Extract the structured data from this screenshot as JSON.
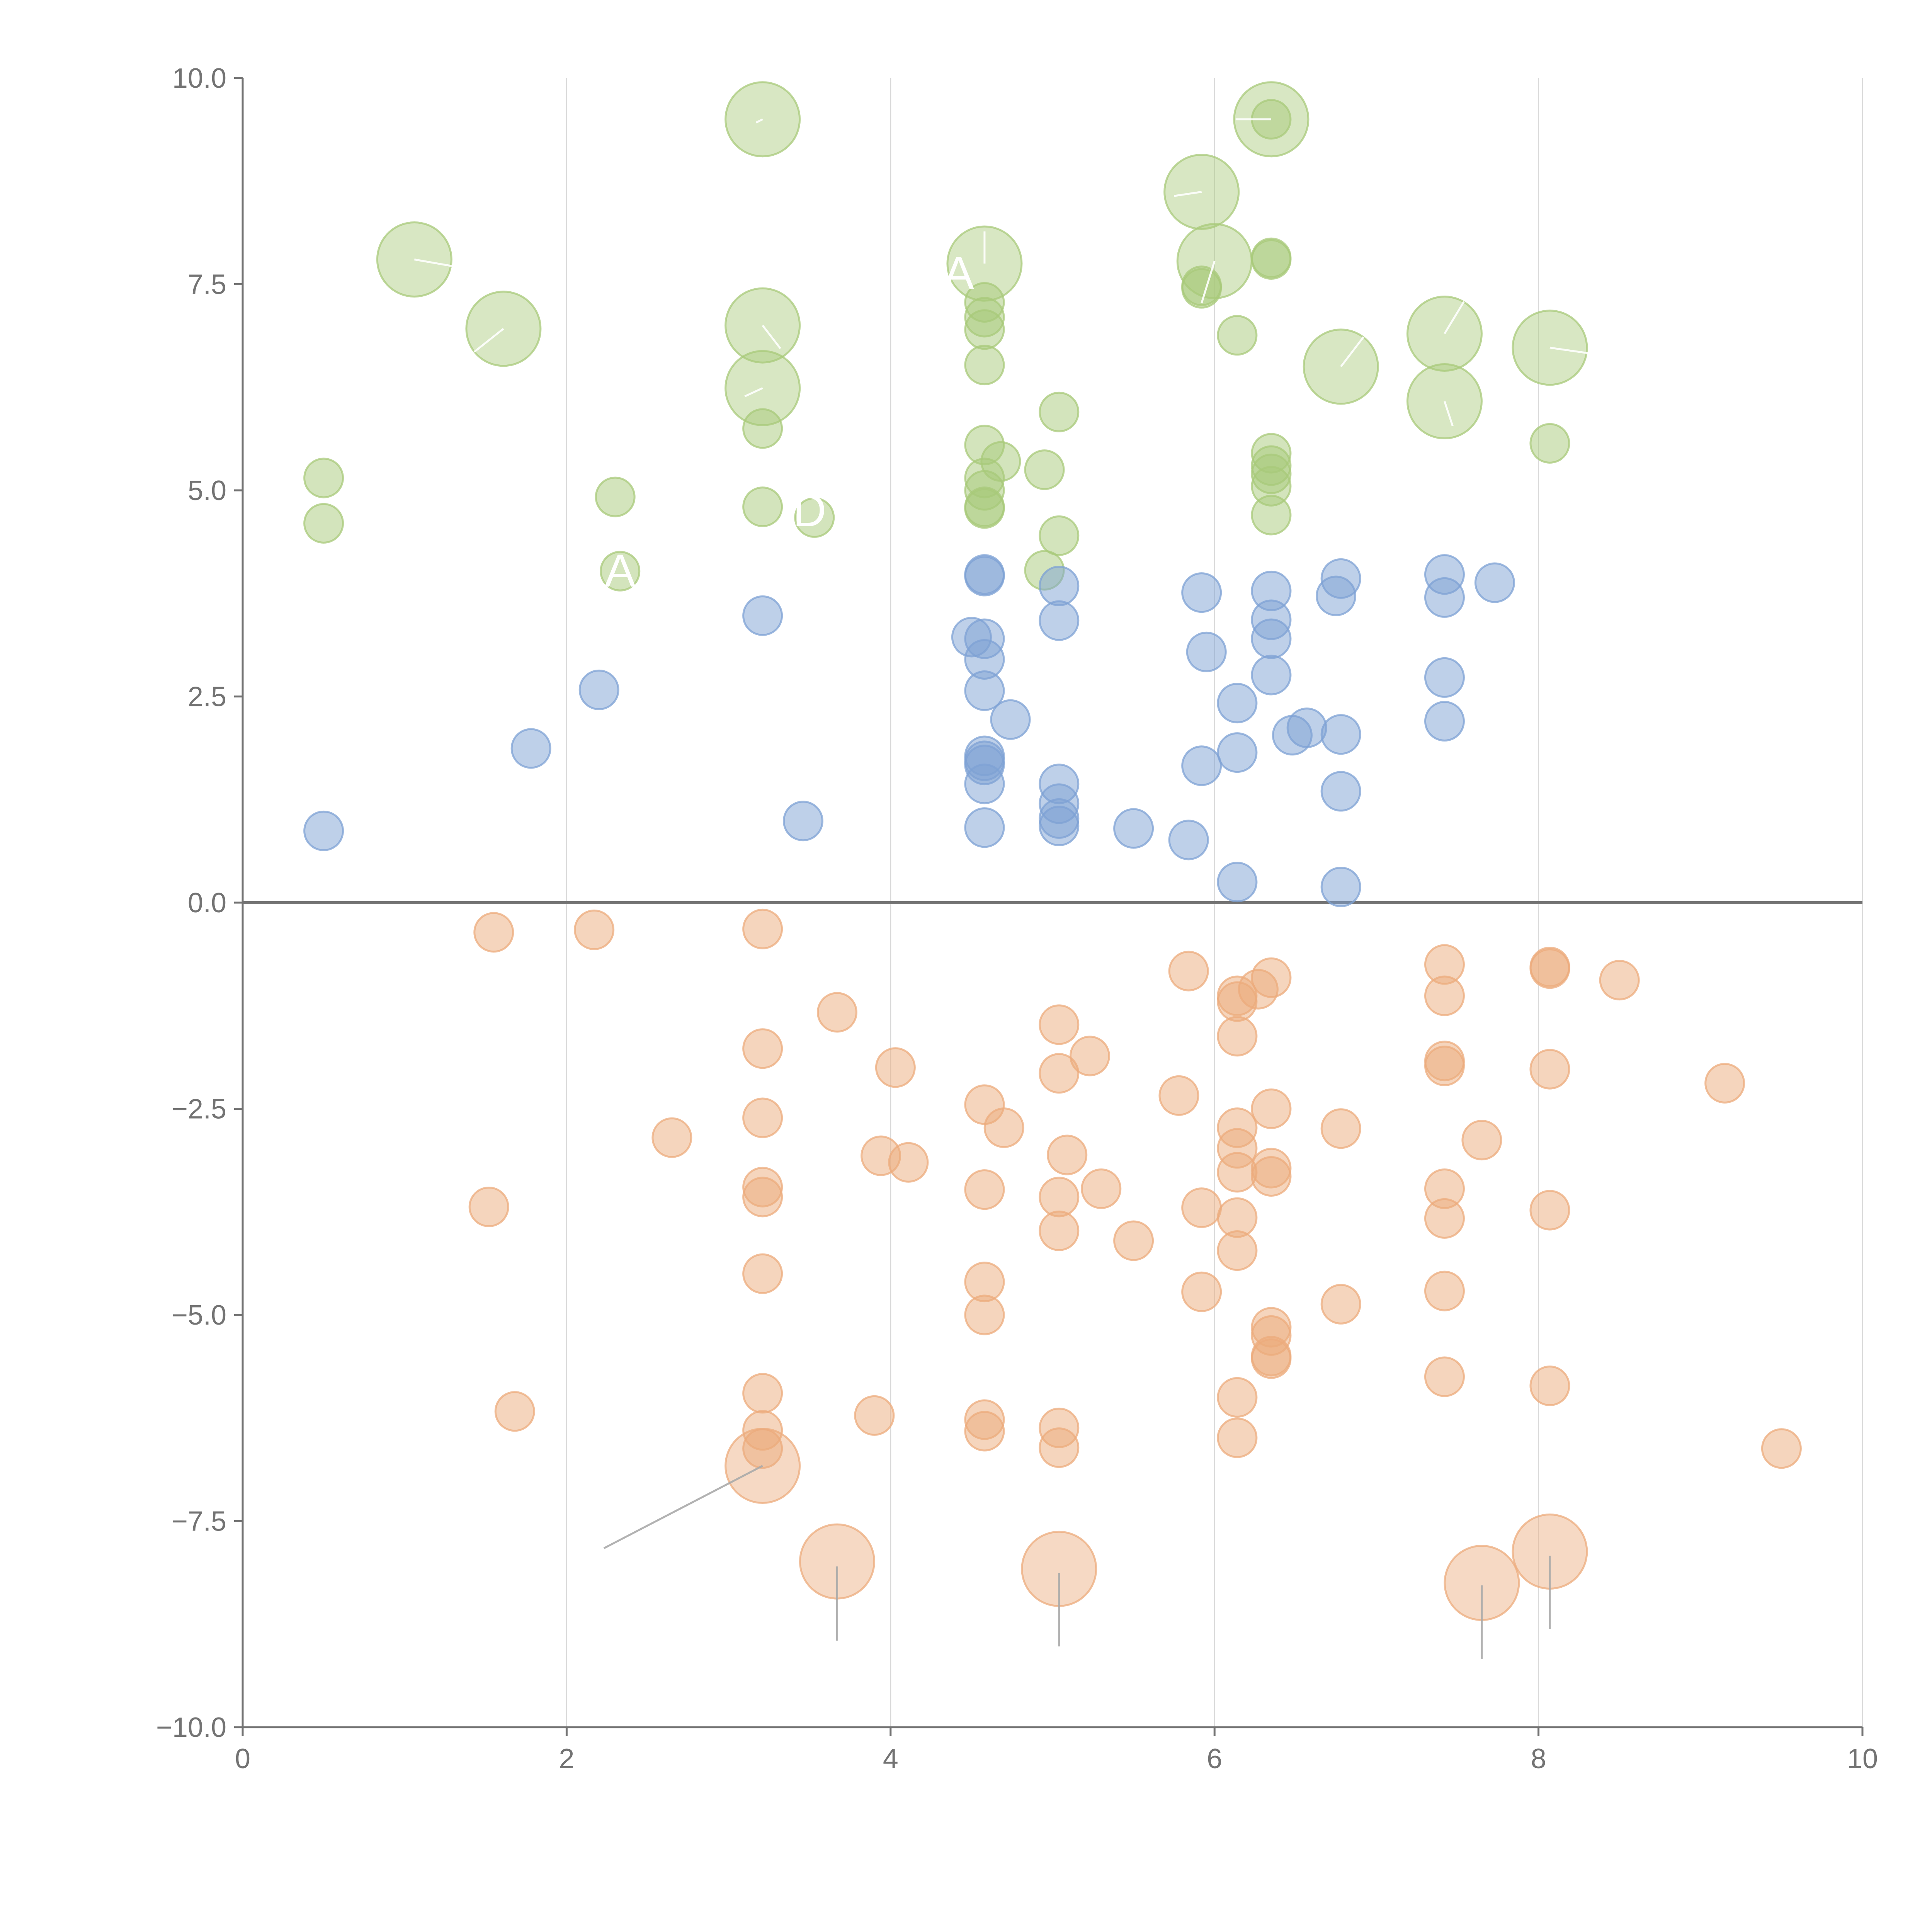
{
  "chart_data": {
    "type": "scatter",
    "title": "",
    "xlabel": "",
    "ylabel": "",
    "xlim": [
      0,
      10
    ],
    "ylim": [
      -10,
      10
    ],
    "x_ticks": [
      "0",
      "2",
      "4",
      "6",
      "8",
      "10"
    ],
    "y_ticks": [
      "10.0",
      "7.5",
      "5.0",
      "2.5",
      "0.0",
      "−2.5",
      "−5.0",
      "−7.5",
      "−10.0"
    ],
    "x_tick_values": [
      0,
      2,
      4,
      6,
      8,
      10
    ],
    "y_tick_values": [
      10,
      7.5,
      5,
      2.5,
      0,
      -2.5,
      -5,
      -7.5,
      -10
    ],
    "grid": "vertical lines at x ticks",
    "baseline_y": 0,
    "colors": {
      "green": "#a8c97a",
      "blue": "#7ea2d4",
      "orange": "#ecab7c",
      "axis": "#737373",
      "grid": "#d9d9d9",
      "leader": "#aaaaaa"
    },
    "series": [
      {
        "color": "green",
        "points": [
          [
            0.5,
            5.15
          ],
          [
            0.5,
            4.6
          ],
          [
            2.3,
            4.92
          ],
          [
            2.33,
            4.02
          ],
          [
            3.21,
            5.75
          ],
          [
            3.21,
            4.8
          ],
          [
            3.53,
            4.67
          ],
          [
            4.58,
            7.28
          ],
          [
            4.58,
            7.1
          ],
          [
            4.58,
            6.95
          ],
          [
            4.58,
            6.52
          ],
          [
            4.58,
            5.55
          ],
          [
            4.58,
            5.15
          ],
          [
            4.58,
            5.0
          ],
          [
            4.58,
            4.8
          ],
          [
            4.58,
            4.78
          ],
          [
            4.68,
            5.35
          ],
          [
            4.95,
            5.25
          ],
          [
            5.04,
            5.95
          ],
          [
            5.04,
            4.45
          ],
          [
            4.95,
            4.03
          ],
          [
            5.92,
            7.48
          ],
          [
            5.92,
            7.45
          ],
          [
            6.14,
            6.88
          ],
          [
            6.35,
            7.82
          ],
          [
            6.35,
            7.8
          ],
          [
            6.35,
            9.5
          ],
          [
            6.35,
            5.45
          ],
          [
            6.35,
            5.3
          ],
          [
            6.35,
            5.2
          ],
          [
            6.35,
            5.05
          ],
          [
            6.35,
            4.7
          ],
          [
            8.07,
            5.57
          ]
        ],
        "bubbles": [
          [
            1.06,
            7.8
          ],
          [
            1.61,
            6.96
          ],
          [
            3.21,
            9.5
          ],
          [
            3.21,
            7.0
          ],
          [
            3.21,
            6.24
          ],
          [
            4.58,
            7.75
          ],
          [
            5.92,
            8.62
          ],
          [
            6.0,
            7.78
          ],
          [
            6.35,
            9.5
          ],
          [
            6.78,
            6.5
          ],
          [
            7.42,
            6.9
          ],
          [
            7.42,
            6.08
          ],
          [
            8.07,
            6.73
          ]
        ]
      },
      {
        "color": "blue",
        "points": [
          [
            0.5,
            0.87
          ],
          [
            1.78,
            1.87
          ],
          [
            2.2,
            2.58
          ],
          [
            3.21,
            3.48
          ],
          [
            3.46,
            0.99
          ],
          [
            4.5,
            3.22
          ],
          [
            4.58,
            3.98
          ],
          [
            4.58,
            3.96
          ],
          [
            4.58,
            3.2
          ],
          [
            4.58,
            2.95
          ],
          [
            4.58,
            2.57
          ],
          [
            4.58,
            1.78
          ],
          [
            4.58,
            1.72
          ],
          [
            4.58,
            1.67
          ],
          [
            4.58,
            1.44
          ],
          [
            4.58,
            0.91
          ],
          [
            4.74,
            2.22
          ],
          [
            5.04,
            3.84
          ],
          [
            5.04,
            3.42
          ],
          [
            5.04,
            1.44
          ],
          [
            5.04,
            1.2
          ],
          [
            5.04,
            1.02
          ],
          [
            5.04,
            0.93
          ],
          [
            5.5,
            0.9
          ],
          [
            5.84,
            0.76
          ],
          [
            5.92,
            3.76
          ],
          [
            5.92,
            1.66
          ],
          [
            5.95,
            3.04
          ],
          [
            6.14,
            2.42
          ],
          [
            6.14,
            1.82
          ],
          [
            6.14,
            0.25
          ],
          [
            6.35,
            3.78
          ],
          [
            6.35,
            3.43
          ],
          [
            6.35,
            3.2
          ],
          [
            6.35,
            2.76
          ],
          [
            6.48,
            2.03
          ],
          [
            6.57,
            2.12
          ],
          [
            6.75,
            3.72
          ],
          [
            6.78,
            3.93
          ],
          [
            6.78,
            2.04
          ],
          [
            6.78,
            1.35
          ],
          [
            6.78,
            0.19
          ],
          [
            7.42,
            3.98
          ],
          [
            7.42,
            3.7
          ],
          [
            7.42,
            2.73
          ],
          [
            7.42,
            2.2
          ],
          [
            7.73,
            3.88
          ]
        ],
        "bubbles": []
      },
      {
        "color": "orange",
        "points": [
          [
            1.55,
            -0.36
          ],
          [
            2.17,
            -0.33
          ],
          [
            3.21,
            -0.32
          ],
          [
            3.67,
            -1.33
          ],
          [
            4.03,
            -2.0
          ],
          [
            3.21,
            -1.77
          ],
          [
            3.21,
            -2.61
          ],
          [
            2.65,
            -2.85
          ],
          [
            1.52,
            -3.69
          ],
          [
            3.21,
            -3.45
          ],
          [
            3.21,
            -3.57
          ],
          [
            3.21,
            -4.5
          ],
          [
            3.21,
            -5.95
          ],
          [
            3.21,
            -6.4
          ],
          [
            3.21,
            -6.62
          ],
          [
            1.68,
            -6.17
          ],
          [
            3.9,
            -6.22
          ],
          [
            3.94,
            -3.07
          ],
          [
            4.11,
            -3.15
          ],
          [
            4.58,
            -2.45
          ],
          [
            4.7,
            -2.73
          ],
          [
            4.58,
            -3.48
          ],
          [
            4.58,
            -4.6
          ],
          [
            4.58,
            -5.0
          ],
          [
            4.58,
            -6.27
          ],
          [
            4.58,
            -6.41
          ],
          [
            5.04,
            -1.48
          ],
          [
            5.23,
            -1.86
          ],
          [
            5.04,
            -2.07
          ],
          [
            5.09,
            -3.06
          ],
          [
            5.04,
            -3.57
          ],
          [
            5.3,
            -3.47
          ],
          [
            5.04,
            -3.98
          ],
          [
            5.5,
            -4.1
          ],
          [
            5.04,
            -6.37
          ],
          [
            5.04,
            -6.61
          ],
          [
            5.78,
            -2.34
          ],
          [
            5.84,
            -0.83
          ],
          [
            5.92,
            -3.7
          ],
          [
            5.92,
            -4.72
          ],
          [
            6.14,
            -1.13
          ],
          [
            6.14,
            -1.2
          ],
          [
            6.14,
            -1.62
          ],
          [
            6.14,
            -2.73
          ],
          [
            6.14,
            -2.98
          ],
          [
            6.14,
            -3.27
          ],
          [
            6.14,
            -3.82
          ],
          [
            6.14,
            -4.22
          ],
          [
            6.14,
            -6.0
          ],
          [
            6.14,
            -6.49
          ],
          [
            6.27,
            -1.05
          ],
          [
            6.35,
            -0.91
          ],
          [
            6.35,
            -2.5
          ],
          [
            6.35,
            -3.22
          ],
          [
            6.35,
            -3.32
          ],
          [
            6.35,
            -5.15
          ],
          [
            6.35,
            -5.25
          ],
          [
            6.35,
            -5.5
          ],
          [
            6.35,
            -5.53
          ],
          [
            6.78,
            -2.74
          ],
          [
            6.78,
            -4.87
          ],
          [
            7.42,
            -0.75
          ],
          [
            7.42,
            -1.13
          ],
          [
            7.42,
            -1.92
          ],
          [
            7.42,
            -1.98
          ],
          [
            7.42,
            -3.47
          ],
          [
            7.42,
            -3.83
          ],
          [
            7.42,
            -4.71
          ],
          [
            7.42,
            -5.75
          ],
          [
            7.65,
            -2.88
          ],
          [
            8.07,
            -0.78
          ],
          [
            8.07,
            -0.8
          ],
          [
            8.07,
            -2.02
          ],
          [
            8.07,
            -3.73
          ],
          [
            8.07,
            -5.86
          ],
          [
            8.5,
            -0.94
          ],
          [
            9.15,
            -2.19
          ],
          [
            9.5,
            -6.62
          ]
        ],
        "bubbles": [
          [
            3.21,
            -6.83
          ],
          [
            3.67,
            -7.99
          ],
          [
            5.04,
            -8.08
          ],
          [
            7.65,
            -8.25
          ],
          [
            8.07,
            -7.87
          ]
        ]
      }
    ],
    "annotations": [
      {
        "text": "A",
        "x": 2.33,
        "y": 4.03,
        "color": "white"
      },
      {
        "text": "A",
        "x": 4.42,
        "y": 7.64,
        "color": "white"
      },
      {
        "text": "D",
        "x": 3.5,
        "y": 4.76,
        "color": "white"
      }
    ],
    "leader_lines": [
      {
        "color": "white",
        "from": [
          1.06,
          7.8
        ],
        "to": [
          1.38,
          7.69
        ]
      },
      {
        "color": "white",
        "from": [
          1.61,
          6.96
        ],
        "to": [
          1.43,
          6.68
        ]
      },
      {
        "color": "white",
        "from": [
          3.21,
          9.5
        ],
        "to": [
          3.17,
          9.46
        ]
      },
      {
        "color": "white",
        "from": [
          3.21,
          7.0
        ],
        "to": [
          3.32,
          6.72
        ]
      },
      {
        "color": "white",
        "from": [
          3.21,
          6.24
        ],
        "to": [
          3.1,
          6.14
        ]
      },
      {
        "color": "white",
        "from": [
          4.58,
          7.75
        ],
        "to": [
          4.58,
          8.14
        ]
      },
      {
        "color": "white",
        "from": [
          5.92,
          8.62
        ],
        "to": [
          5.75,
          8.57
        ]
      },
      {
        "color": "white",
        "from": [
          6.0,
          7.78
        ],
        "to": [
          5.92,
          7.27
        ]
      },
      {
        "color": "white",
        "from": [
          6.35,
          9.5
        ],
        "to": [
          6.13,
          9.5
        ]
      },
      {
        "color": "white",
        "from": [
          6.78,
          6.5
        ],
        "to": [
          6.92,
          6.86
        ]
      },
      {
        "color": "white",
        "from": [
          7.42,
          6.9
        ],
        "to": [
          7.54,
          7.29
        ]
      },
      {
        "color": "white",
        "from": [
          7.42,
          6.08
        ],
        "to": [
          7.47,
          5.78
        ]
      },
      {
        "color": "white",
        "from": [
          8.07,
          6.73
        ],
        "to": [
          8.32,
          6.66
        ]
      },
      {
        "color": "gray",
        "from": [
          3.21,
          -6.83
        ],
        "to": [
          2.23,
          -7.83
        ]
      },
      {
        "color": "gray",
        "from": [
          3.67,
          -8.05
        ],
        "to": [
          3.67,
          -8.95
        ]
      },
      {
        "color": "gray",
        "from": [
          5.04,
          -8.13
        ],
        "to": [
          5.04,
          -9.02
        ]
      },
      {
        "color": "gray",
        "from": [
          7.65,
          -8.28
        ],
        "to": [
          7.65,
          -9.17
        ]
      },
      {
        "color": "gray",
        "from": [
          8.07,
          -7.92
        ],
        "to": [
          8.07,
          -8.81
        ]
      }
    ]
  }
}
